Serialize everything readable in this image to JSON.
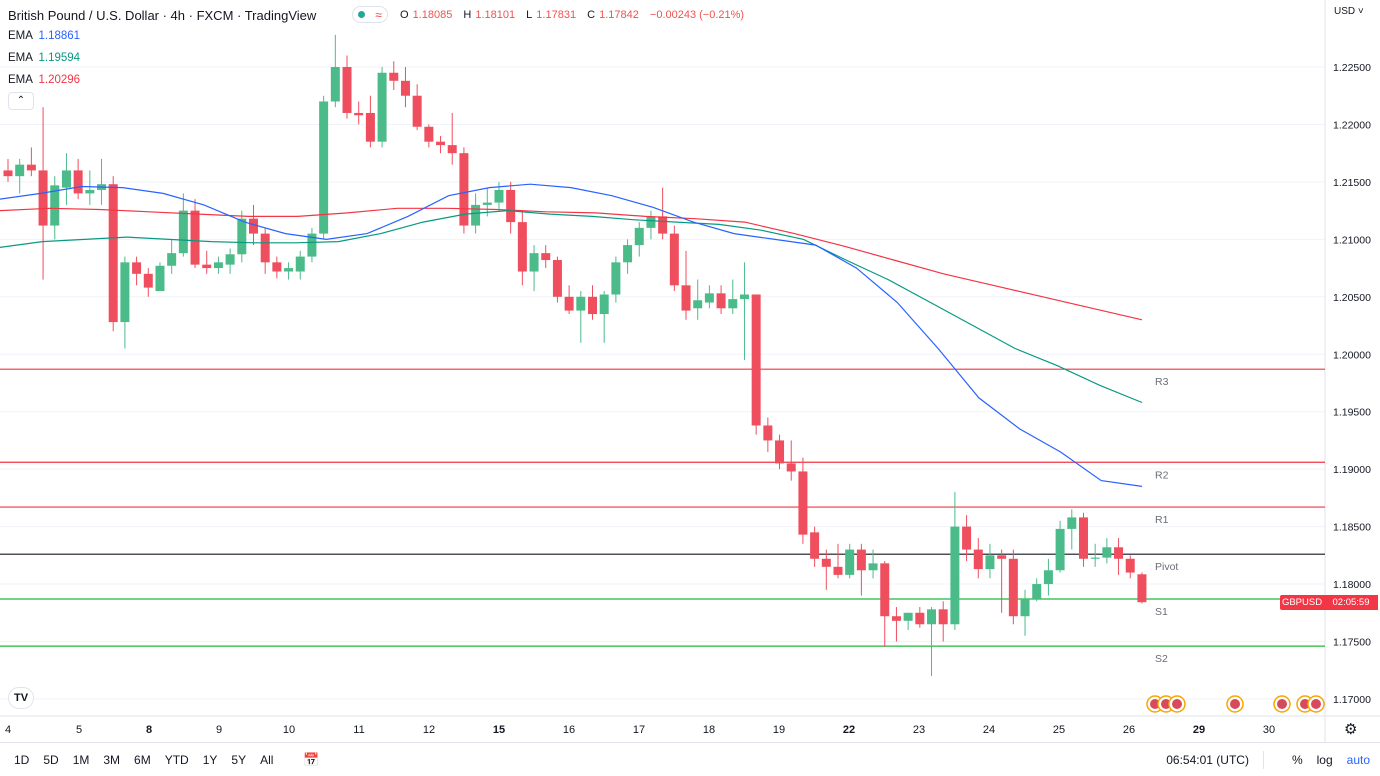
{
  "header": {
    "title": "British Pound / U.S. Dollar · 4h · FXCM · TradingView",
    "ohlc": {
      "o_label": "O",
      "o": "1.18085",
      "h_label": "H",
      "h": "1.18101",
      "l_label": "L",
      "l": "1.17831",
      "c_label": "C",
      "c": "1.17842",
      "change": "−0.00243 (−0.21%)"
    },
    "status_icon": "market-open-dot"
  },
  "indicators": [
    {
      "label": "EMA",
      "value": "1.18861",
      "color": "#2962ff"
    },
    {
      "label": "EMA",
      "value": "1.19594",
      "color": "#089981"
    },
    {
      "label": "EMA",
      "value": "1.20296",
      "color": "#f23645"
    }
  ],
  "currency_menu": "USD",
  "collapse_icon": "chevron-up-icon",
  "symbol_tag": {
    "symbol": "GBPUSD",
    "countdown": "02:05:59",
    "color": "#f23645"
  },
  "bottom_bar": {
    "ranges": [
      "1D",
      "5D",
      "1M",
      "3M",
      "6M",
      "YTD",
      "1Y",
      "5Y",
      "All"
    ],
    "time": "06:54:01 (UTC)",
    "percent": "%",
    "log": "log",
    "auto": "auto"
  },
  "colors": {
    "up": "#4cbb8a",
    "down": "#ef4e5e",
    "ema_fast": "#2962ff",
    "ema_mid": "#089981",
    "ema_slow": "#f23645",
    "resistance": "#f23645",
    "support": "#1fb93a",
    "pivot": "#131722"
  },
  "chart_data": {
    "type": "candlestick",
    "timeframe": "4h",
    "ylim": [
      1.1685,
      1.2275
    ],
    "y_ticks": [
      "1.17000",
      "1.17500",
      "1.18000",
      "1.18500",
      "1.19000",
      "1.19500",
      "1.20000",
      "1.20500",
      "1.21000",
      "1.21500",
      "1.22000",
      "1.22500"
    ],
    "x_tick_labels": [
      "4",
      "5",
      "8",
      "9",
      "10",
      "11",
      "12",
      "15",
      "16",
      "17",
      "18",
      "19",
      "22",
      "23",
      "24",
      "25",
      "26",
      "29",
      "30"
    ],
    "pivot_levels": [
      {
        "name": "R3",
        "value": 1.1987,
        "color": "#f23645"
      },
      {
        "name": "R2",
        "value": 1.1906,
        "color": "#f23645"
      },
      {
        "name": "R1",
        "value": 1.1867,
        "color": "#f23645"
      },
      {
        "name": "Pivot",
        "value": 1.1826,
        "color": "#131722"
      },
      {
        "name": "S1",
        "value": 1.1787,
        "color": "#1fb93a"
      },
      {
        "name": "S2",
        "value": 1.1746,
        "color": "#1fb93a"
      }
    ],
    "candles": [
      [
        1.216,
        1.217,
        1.215,
        1.2155
      ],
      [
        1.2155,
        1.217,
        1.214,
        1.2165
      ],
      [
        1.2165,
        1.218,
        1.2155,
        1.216
      ],
      [
        1.216,
        1.2215,
        1.2065,
        1.2112
      ],
      [
        1.2112,
        1.2155,
        1.21,
        1.2147
      ],
      [
        1.2145,
        1.2175,
        1.213,
        1.216
      ],
      [
        1.216,
        1.217,
        1.2135,
        1.214
      ],
      [
        1.214,
        1.216,
        1.213,
        1.2143
      ],
      [
        1.2143,
        1.217,
        1.213,
        1.2148
      ],
      [
        1.2148,
        1.2155,
        1.202,
        1.2028
      ],
      [
        1.2028,
        1.2085,
        1.2005,
        1.208
      ],
      [
        1.208,
        1.2085,
        1.206,
        1.207
      ],
      [
        1.207,
        1.2075,
        1.205,
        1.2058
      ],
      [
        1.2055,
        1.208,
        1.2055,
        1.2077
      ],
      [
        1.2077,
        1.21,
        1.207,
        1.2088
      ],
      [
        1.2088,
        1.214,
        1.2085,
        1.2125
      ],
      [
        1.2125,
        1.2135,
        1.2075,
        1.2078
      ],
      [
        1.2078,
        1.209,
        1.207,
        1.2075
      ],
      [
        1.2075,
        1.2085,
        1.207,
        1.208
      ],
      [
        1.2078,
        1.2092,
        1.207,
        1.2087
      ],
      [
        1.2087,
        1.2125,
        1.208,
        1.2118
      ],
      [
        1.2118,
        1.213,
        1.2095,
        1.2105
      ],
      [
        1.2105,
        1.211,
        1.207,
        1.208
      ],
      [
        1.208,
        1.2085,
        1.2066,
        1.2072
      ],
      [
        1.2072,
        1.208,
        1.2065,
        1.2075
      ],
      [
        1.2072,
        1.209,
        1.2065,
        1.2085
      ],
      [
        1.2085,
        1.211,
        1.208,
        1.2105
      ],
      [
        1.2105,
        1.2225,
        1.21,
        1.222
      ],
      [
        1.222,
        1.2278,
        1.2215,
        1.225
      ],
      [
        1.225,
        1.226,
        1.2205,
        1.221
      ],
      [
        1.221,
        1.222,
        1.22,
        1.2208
      ],
      [
        1.221,
        1.2225,
        1.218,
        1.2185
      ],
      [
        1.2185,
        1.225,
        1.218,
        1.2245
      ],
      [
        1.2245,
        1.2255,
        1.223,
        1.2238
      ],
      [
        1.2238,
        1.225,
        1.2215,
        1.2225
      ],
      [
        1.2225,
        1.2235,
        1.2195,
        1.2198
      ],
      [
        1.2198,
        1.22,
        1.218,
        1.2185
      ],
      [
        1.2185,
        1.219,
        1.2175,
        1.2182
      ],
      [
        1.2182,
        1.221,
        1.2165,
        1.2175
      ],
      [
        1.2175,
        1.218,
        1.2105,
        1.2112
      ],
      [
        1.2112,
        1.214,
        1.2105,
        1.213
      ],
      [
        1.213,
        1.2145,
        1.212,
        1.2132
      ],
      [
        1.2132,
        1.215,
        1.2125,
        1.2143
      ],
      [
        1.2143,
        1.215,
        1.2105,
        1.2115
      ],
      [
        1.2115,
        1.2125,
        1.206,
        1.2072
      ],
      [
        1.2072,
        1.2095,
        1.2055,
        1.2088
      ],
      [
        1.2088,
        1.2095,
        1.2075,
        1.2082
      ],
      [
        1.2082,
        1.2085,
        1.2045,
        1.205
      ],
      [
        1.205,
        1.206,
        1.2035,
        1.2038
      ],
      [
        1.2038,
        1.2055,
        1.201,
        1.205
      ],
      [
        1.205,
        1.206,
        1.203,
        1.2035
      ],
      [
        1.2035,
        1.2055,
        1.201,
        1.2052
      ],
      [
        1.2052,
        1.2085,
        1.2045,
        1.208
      ],
      [
        1.208,
        1.21,
        1.207,
        1.2095
      ],
      [
        1.2095,
        1.2115,
        1.2085,
        1.211
      ],
      [
        1.211,
        1.2125,
        1.21,
        1.212
      ],
      [
        1.212,
        1.2145,
        1.21,
        1.2105
      ],
      [
        1.2105,
        1.2112,
        1.2055,
        1.206
      ],
      [
        1.206,
        1.209,
        1.203,
        1.2038
      ],
      [
        1.204,
        1.2065,
        1.203,
        1.2047
      ],
      [
        1.2045,
        1.206,
        1.204,
        1.2053
      ],
      [
        1.2053,
        1.206,
        1.2035,
        1.204
      ],
      [
        1.204,
        1.2065,
        1.2035,
        1.2048
      ],
      [
        1.2048,
        1.208,
        1.1995,
        1.2052
      ],
      [
        1.2052,
        1.2052,
        1.193,
        1.1938
      ],
      [
        1.1938,
        1.1945,
        1.1915,
        1.1925
      ],
      [
        1.1925,
        1.193,
        1.19,
        1.1905
      ],
      [
        1.1905,
        1.1925,
        1.189,
        1.1898
      ],
      [
        1.1898,
        1.191,
        1.1835,
        1.1843
      ],
      [
        1.1845,
        1.185,
        1.1815,
        1.1822
      ],
      [
        1.1822,
        1.183,
        1.1795,
        1.1815
      ],
      [
        1.1815,
        1.1835,
        1.1805,
        1.1808
      ],
      [
        1.1808,
        1.1835,
        1.1805,
        1.183
      ],
      [
        1.183,
        1.1835,
        1.179,
        1.1812
      ],
      [
        1.1812,
        1.183,
        1.1805,
        1.1818
      ],
      [
        1.1818,
        1.182,
        1.1745,
        1.1772
      ],
      [
        1.1772,
        1.178,
        1.175,
        1.1768
      ],
      [
        1.1768,
        1.1775,
        1.176,
        1.1775
      ],
      [
        1.1775,
        1.178,
        1.1762,
        1.1765
      ],
      [
        1.1765,
        1.178,
        1.172,
        1.1778
      ],
      [
        1.1778,
        1.1785,
        1.175,
        1.1765
      ],
      [
        1.1765,
        1.188,
        1.176,
        1.185
      ],
      [
        1.185,
        1.186,
        1.182,
        1.183
      ],
      [
        1.183,
        1.184,
        1.1805,
        1.1813
      ],
      [
        1.1813,
        1.1835,
        1.1805,
        1.1825
      ],
      [
        1.1825,
        1.183,
        1.1775,
        1.1822
      ],
      [
        1.1822,
        1.183,
        1.1765,
        1.1772
      ],
      [
        1.1772,
        1.1795,
        1.1755,
        1.1787
      ],
      [
        1.1787,
        1.1805,
        1.1785,
        1.18
      ],
      [
        1.18,
        1.1822,
        1.179,
        1.1812
      ],
      [
        1.1812,
        1.1855,
        1.181,
        1.1848
      ],
      [
        1.1848,
        1.1865,
        1.183,
        1.1858
      ],
      [
        1.1858,
        1.1862,
        1.1815,
        1.1822
      ],
      [
        1.1822,
        1.1835,
        1.1815,
        1.1823
      ],
      [
        1.1823,
        1.184,
        1.1818,
        1.1832
      ],
      [
        1.1832,
        1.184,
        1.1808,
        1.1822
      ],
      [
        1.1822,
        1.1825,
        1.1805,
        1.181
      ],
      [
        1.18085,
        1.18101,
        1.17831,
        1.17842
      ]
    ],
    "ema_fast": [
      1.2135,
      1.214,
      1.2146,
      1.2145,
      1.214,
      1.213,
      1.2115,
      1.2105,
      1.21,
      1.2105,
      1.212,
      1.2138,
      1.2145,
      1.2148,
      1.2145,
      1.2138,
      1.2128,
      1.2115,
      1.2105,
      1.21,
      1.2095,
      1.2075,
      1.2045,
      1.2005,
      1.1962,
      1.1935,
      1.1915,
      1.189,
      1.1885
    ],
    "ema_mid": [
      1.2093,
      1.2098,
      1.21,
      1.2102,
      1.21,
      1.2098,
      1.2097,
      1.2097,
      1.2098,
      1.2105,
      1.2115,
      1.2122,
      1.2125,
      1.2122,
      1.212,
      1.2117,
      1.2115,
      1.2113,
      1.2108,
      1.21,
      1.2082,
      1.2065,
      1.2045,
      1.2025,
      1.2005,
      1.199,
      1.1973,
      1.1958
    ],
    "ema_slow": [
      1.2125,
      1.2127,
      1.2126,
      1.2124,
      1.2122,
      1.212,
      1.212,
      1.2123,
      1.2127,
      1.2127,
      1.2126,
      1.2124,
      1.2123,
      1.212,
      1.2118,
      1.2115,
      1.2105,
      1.2094,
      1.2082,
      1.207,
      1.206,
      1.205,
      1.204,
      1.203
    ]
  }
}
